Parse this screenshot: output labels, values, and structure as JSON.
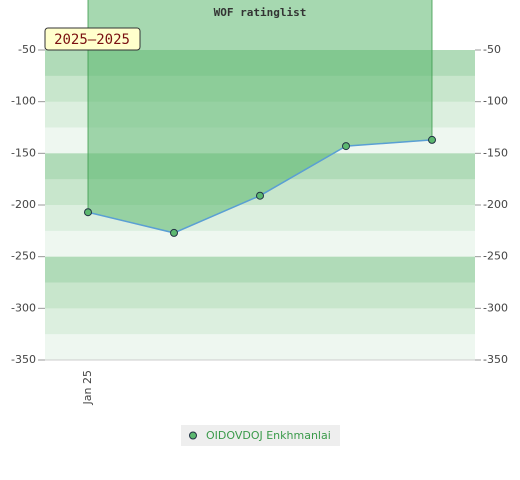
{
  "chart_data": {
    "type": "line",
    "title": "WOF ratinglist",
    "badge": "2025–2025",
    "categories": [
      "Jan 25",
      null,
      null,
      null,
      null
    ],
    "series": [
      {
        "name": "OIDOVDOJ Enkhmanlai",
        "color": "#5a9fd4",
        "marker_color": "#5cb870",
        "fill_color": "#5cb870",
        "values": [
          -207,
          -227,
          -191,
          -143,
          -137
        ]
      }
    ],
    "ylim": [
      -350,
      -50
    ],
    "yticks": [
      -350,
      -300,
      -250,
      -200,
      -150,
      -100,
      -50
    ],
    "y2lim": [
      -350,
      -50
    ],
    "y2ticks": [
      -350,
      -300,
      -250,
      -200,
      -150,
      -100,
      -50
    ]
  }
}
